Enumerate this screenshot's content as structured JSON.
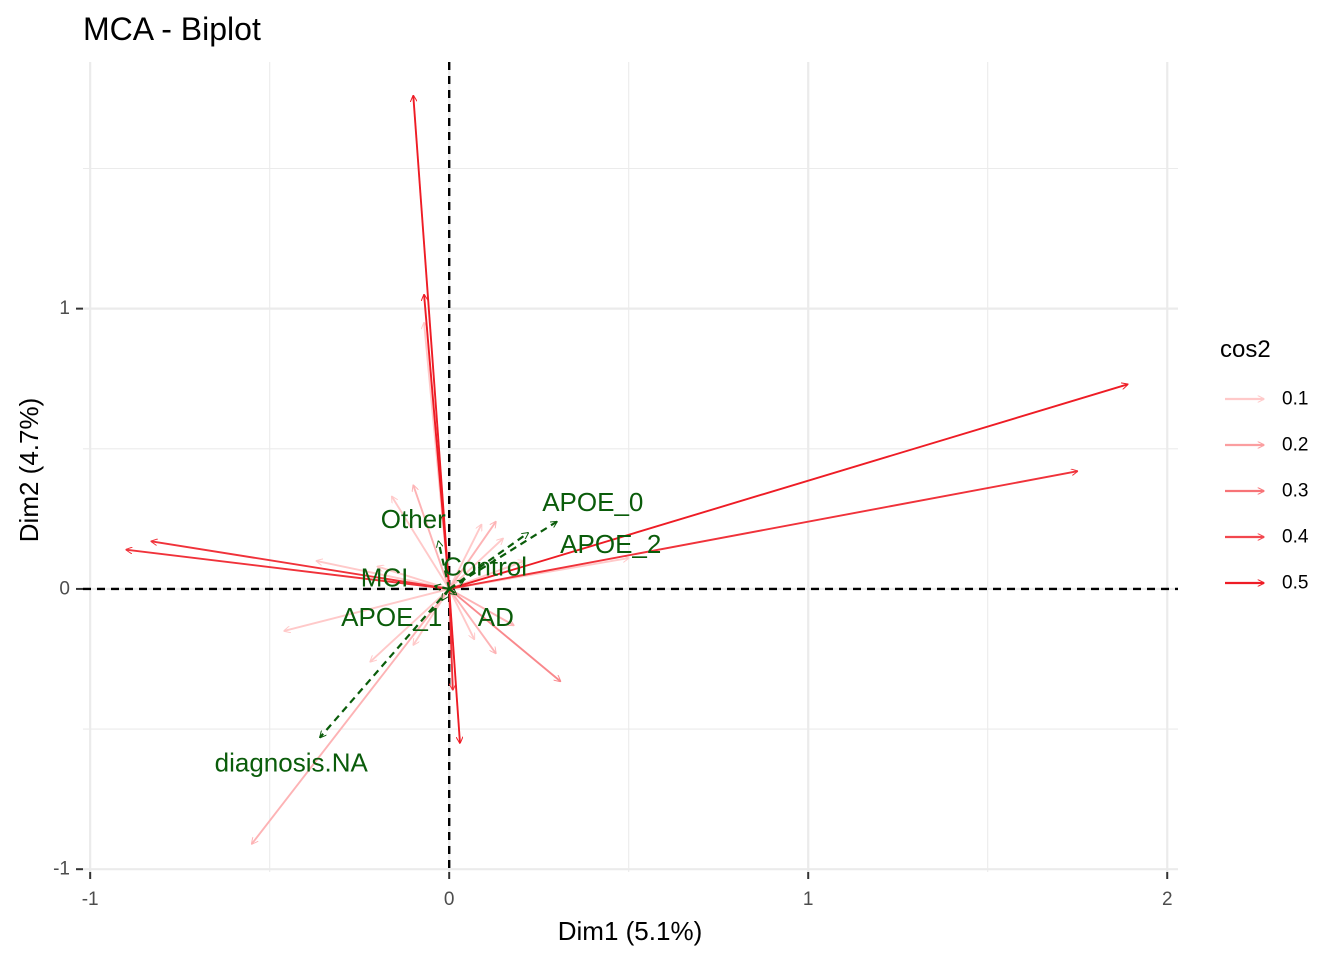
{
  "chart_data": {
    "type": "scatter",
    "title": "MCA - Biplot",
    "xlabel": "Dim1 (5.1%)",
    "ylabel": "Dim2 (4.7%)",
    "xlim": [
      -1.02,
      2.03
    ],
    "ylim": [
      -1.01,
      1.88
    ],
    "x_ticks": [
      -1,
      0,
      1,
      2
    ],
    "x_tick_labels": [
      "-1",
      "0",
      "1",
      "2"
    ],
    "y_ticks": [
      -1,
      0,
      1
    ],
    "y_tick_labels": [
      "-1",
      "0",
      "1"
    ],
    "grid": true,
    "reference_lines": {
      "x": 0,
      "y": 0,
      "style": "dashed"
    },
    "legend": {
      "title": "cos2",
      "position": "right",
      "entries": [
        "0.1",
        "0.2",
        "0.3",
        "0.4",
        "0.5"
      ]
    },
    "colors": {
      "cos2_low": "#ffc9c9",
      "cos2_high": "#ee1c25",
      "supplementary": "#0a5c0a",
      "gridline": "#ebebeb",
      "reference": "#000000"
    },
    "variable_arrows": [
      {
        "x": -0.1,
        "y": 1.76,
        "cos2": 0.5
      },
      {
        "x": -0.07,
        "y": 1.05,
        "cos2": 0.5
      },
      {
        "x": 1.89,
        "y": 0.73,
        "cos2": 0.5
      },
      {
        "x": 1.75,
        "y": 0.42,
        "cos2": 0.45
      },
      {
        "x": -0.83,
        "y": 0.17,
        "cos2": 0.45
      },
      {
        "x": -0.9,
        "y": 0.14,
        "cos2": 0.45
      },
      {
        "x": 0.03,
        "y": -0.55,
        "cos2": 0.5
      },
      {
        "x": 0.01,
        "y": -0.36,
        "cos2": 0.45
      },
      {
        "x": -0.55,
        "y": -0.91,
        "cos2": 0.15
      },
      {
        "x": 0.31,
        "y": -0.33,
        "cos2": 0.25
      },
      {
        "x": -0.46,
        "y": -0.15,
        "cos2": 0.1
      },
      {
        "x": -0.07,
        "y": 0.95,
        "cos2": 0.1
      },
      {
        "x": -0.1,
        "y": 0.37,
        "cos2": 0.15
      },
      {
        "x": -0.16,
        "y": 0.33,
        "cos2": 0.1
      },
      {
        "x": -0.37,
        "y": 0.1,
        "cos2": 0.1
      },
      {
        "x": -0.22,
        "y": -0.26,
        "cos2": 0.1
      },
      {
        "x": 0.13,
        "y": 0.24,
        "cos2": 0.15
      },
      {
        "x": 0.09,
        "y": 0.23,
        "cos2": 0.1
      },
      {
        "x": 0.5,
        "y": 0.11,
        "cos2": 0.1
      },
      {
        "x": 0.13,
        "y": -0.23,
        "cos2": 0.15
      },
      {
        "x": 0.18,
        "y": -0.13,
        "cos2": 0.15
      },
      {
        "x": 0.07,
        "y": -0.18,
        "cos2": 0.1
      },
      {
        "x": -0.1,
        "y": -0.2,
        "cos2": 0.1
      },
      {
        "x": 0.21,
        "y": 0.1,
        "cos2": 0.1
      },
      {
        "x": -0.2,
        "y": 0.08,
        "cos2": 0.1
      },
      {
        "x": 0.15,
        "y": 0.18,
        "cos2": 0.1
      }
    ],
    "supplementary_arrows": [
      {
        "label": "APOE_0",
        "x": 0.3,
        "y": 0.24,
        "label_x": 0.4,
        "label_y": 0.31
      },
      {
        "label": "APOE_2",
        "x": 0.22,
        "y": 0.2,
        "label_x": 0.45,
        "label_y": 0.16
      },
      {
        "label": "Other",
        "x": -0.03,
        "y": 0.17,
        "label_x": -0.1,
        "label_y": 0.25
      },
      {
        "label": "Control",
        "x": 0.04,
        "y": 0.03,
        "label_x": 0.1,
        "label_y": 0.08
      },
      {
        "label": "MCI",
        "x": -0.04,
        "y": 0.01,
        "label_x": -0.18,
        "label_y": 0.04
      },
      {
        "label": "APOE_1",
        "x": -0.02,
        "y": -0.04,
        "label_x": -0.16,
        "label_y": -0.1
      },
      {
        "label": "AD",
        "x": 0.02,
        "y": -0.02,
        "label_x": 0.13,
        "label_y": -0.1
      },
      {
        "label": "diagnosis.NA",
        "x": -0.36,
        "y": -0.53,
        "label_x": -0.44,
        "label_y": -0.62
      }
    ]
  }
}
